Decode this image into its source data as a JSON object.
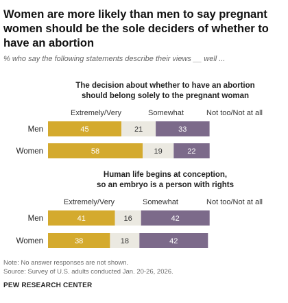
{
  "header": {
    "title": "Women are more likely than men to say pregnant women should be the sole deciders of whether to have an abortion",
    "subtitle": "% who say the following statements describe their views __ well ..."
  },
  "footer": {
    "note": "Note: No answer responses are not shown.",
    "source": "Source: Survey of U.S. adults conducted Jan. 20-26, 2026.",
    "brand": "PEW RESEARCH CENTER"
  },
  "colors": {
    "extremely_very": "#d4aa2e",
    "somewhat": "#ebe9e1",
    "not_too": "#7c6a8a"
  },
  "chart_data": [
    {
      "type": "bar",
      "orientation": "horizontal",
      "stacked": true,
      "title": "The decision about whether to have an abortion should belong solely to the pregnant woman",
      "categories": [
        "Men",
        "Women"
      ],
      "series": [
        {
          "name": "Extremely/Very",
          "values": [
            45,
            58
          ]
        },
        {
          "name": "Somewhat",
          "values": [
            21,
            19
          ]
        },
        {
          "name": "Not too/Not at all",
          "values": [
            33,
            22
          ]
        }
      ]
    },
    {
      "type": "bar",
      "orientation": "horizontal",
      "stacked": true,
      "title": "Human life begins at conception, so an embryo is a person with rights",
      "categories": [
        "Men",
        "Women"
      ],
      "series": [
        {
          "name": "Extremely/Very",
          "values": [
            41,
            38
          ]
        },
        {
          "name": "Somewhat",
          "values": [
            16,
            18
          ]
        },
        {
          "name": "Not too/Not at all",
          "values": [
            42,
            42
          ]
        }
      ]
    }
  ]
}
